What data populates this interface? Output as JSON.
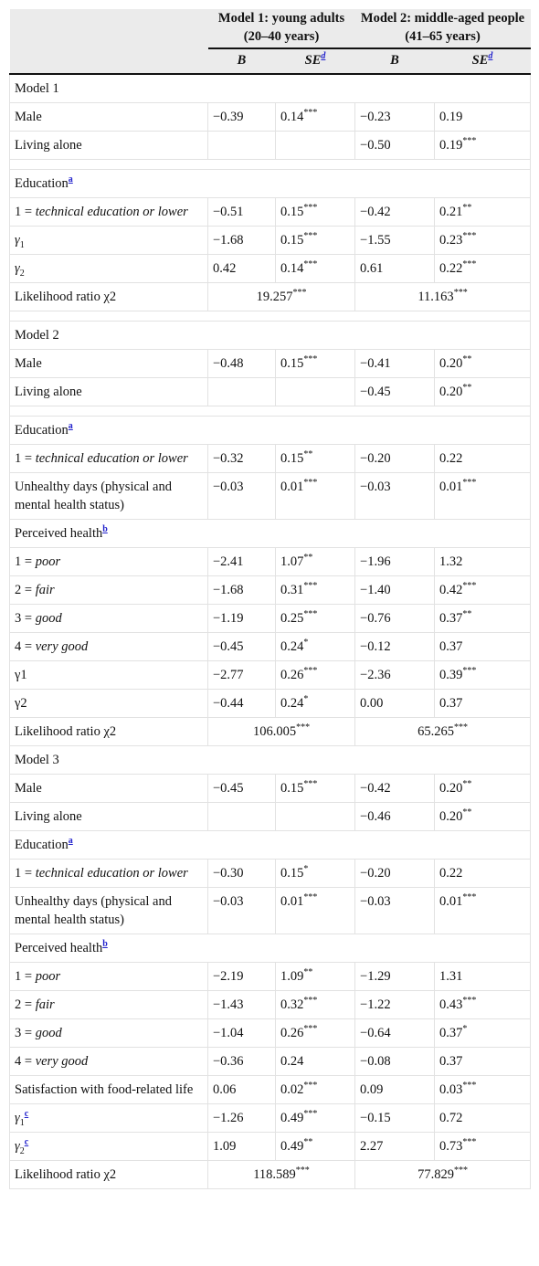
{
  "header": {
    "groups": [
      "Model 1: young adults (20–40 years)",
      "Model 2: middle-aged people (41–65 years)"
    ],
    "sub": [
      [
        {
          "t": "B",
          "f": "i"
        }
      ],
      [
        {
          "t": "SE",
          "f": "i"
        },
        {
          "t": "d",
          "f": "note"
        }
      ],
      [
        {
          "t": "B",
          "f": "i"
        }
      ],
      [
        {
          "t": "SE",
          "f": "i"
        },
        {
          "t": "d",
          "f": "note"
        }
      ]
    ]
  },
  "table": {
    "rows": [
      {
        "label": [
          {
            "t": "Model 1"
          }
        ],
        "section": true
      },
      {
        "label": [
          {
            "t": "Male"
          }
        ],
        "cells": [
          {
            "v": "−0.39"
          },
          {
            "v": "0.14",
            "sig": "***"
          },
          {
            "v": "−0.23"
          },
          {
            "v": "0.19"
          }
        ]
      },
      {
        "label": [
          {
            "t": "Living alone"
          }
        ],
        "cells": [
          null,
          null,
          {
            "v": "−0.50"
          },
          {
            "v": "0.19",
            "sig": "***"
          }
        ],
        "gap_after": true
      },
      {
        "label": [
          {
            "t": "Education"
          },
          {
            "t": "a",
            "f": "note"
          }
        ],
        "section": true
      },
      {
        "label": [
          {
            "t": "1 = "
          },
          {
            "t": "technical education or lower",
            "f": "i"
          }
        ],
        "cells": [
          {
            "v": "−0.51"
          },
          {
            "v": "0.15",
            "sig": "***"
          },
          {
            "v": "−0.42"
          },
          {
            "v": "0.21",
            "sig": "**"
          }
        ]
      },
      {
        "label": [
          {
            "t": "γ",
            "f": "i"
          },
          {
            "t": "1",
            "f": "sub"
          }
        ],
        "cells": [
          {
            "v": "−1.68"
          },
          {
            "v": "0.15",
            "sig": "***"
          },
          {
            "v": "−1.55"
          },
          {
            "v": "0.23",
            "sig": "***"
          }
        ]
      },
      {
        "label": [
          {
            "t": "γ",
            "f": "i"
          },
          {
            "t": "2",
            "f": "sub"
          }
        ],
        "cells": [
          {
            "v": "0.42"
          },
          {
            "v": "0.14",
            "sig": "***"
          },
          {
            "v": "0.61"
          },
          {
            "v": "0.22",
            "sig": "***"
          }
        ]
      },
      {
        "label": [
          {
            "t": "Likelihood ratio χ2"
          }
        ],
        "cells": [
          {
            "v": "19.257",
            "sig": "***",
            "span": 2
          },
          {
            "v": "11.163",
            "sig": "***",
            "span": 2
          }
        ],
        "gap_after": true
      },
      {
        "label": [
          {
            "t": "Model 2"
          }
        ],
        "section": true
      },
      {
        "label": [
          {
            "t": "Male"
          }
        ],
        "cells": [
          {
            "v": "−0.48"
          },
          {
            "v": "0.15",
            "sig": "***"
          },
          {
            "v": "−0.41"
          },
          {
            "v": "0.20",
            "sig": "**"
          }
        ]
      },
      {
        "label": [
          {
            "t": "Living alone"
          }
        ],
        "cells": [
          null,
          null,
          {
            "v": "−0.45"
          },
          {
            "v": "0.20",
            "sig": "**"
          }
        ],
        "gap_after": true
      },
      {
        "label": [
          {
            "t": "Education"
          },
          {
            "t": "a",
            "f": "note"
          }
        ],
        "section": true
      },
      {
        "label": [
          {
            "t": "1 = "
          },
          {
            "t": "technical education or lower",
            "f": "i"
          }
        ],
        "cells": [
          {
            "v": "−0.32"
          },
          {
            "v": "0.15",
            "sig": "**"
          },
          {
            "v": "−0.20"
          },
          {
            "v": "0.22"
          }
        ]
      },
      {
        "label": [
          {
            "t": "Unhealthy days (physical and mental health status)"
          }
        ],
        "cells": [
          {
            "v": "−0.03"
          },
          {
            "v": "0.01",
            "sig": "***"
          },
          {
            "v": "−0.03"
          },
          {
            "v": "0.01",
            "sig": "***"
          }
        ]
      },
      {
        "label": [
          {
            "t": "Perceived health"
          },
          {
            "t": "b",
            "f": "note"
          }
        ],
        "section": true
      },
      {
        "label": [
          {
            "t": "1 = "
          },
          {
            "t": "poor",
            "f": "i"
          }
        ],
        "cells": [
          {
            "v": "−2.41"
          },
          {
            "v": "1.07",
            "sig": "**"
          },
          {
            "v": "−1.96"
          },
          {
            "v": "1.32"
          }
        ]
      },
      {
        "label": [
          {
            "t": "2 = "
          },
          {
            "t": "fair",
            "f": "i"
          }
        ],
        "cells": [
          {
            "v": "−1.68"
          },
          {
            "v": "0.31",
            "sig": "***"
          },
          {
            "v": "−1.40"
          },
          {
            "v": "0.42",
            "sig": "***"
          }
        ]
      },
      {
        "label": [
          {
            "t": "3 = "
          },
          {
            "t": "good",
            "f": "i"
          }
        ],
        "cells": [
          {
            "v": "−1.19"
          },
          {
            "v": "0.25",
            "sig": "***"
          },
          {
            "v": "−0.76"
          },
          {
            "v": "0.37",
            "sig": "**"
          }
        ]
      },
      {
        "label": [
          {
            "t": "4 = "
          },
          {
            "t": "very good",
            "f": "i"
          }
        ],
        "cells": [
          {
            "v": "−0.45"
          },
          {
            "v": "0.24",
            "sig": "*"
          },
          {
            "v": "−0.12"
          },
          {
            "v": "0.37"
          }
        ]
      },
      {
        "label": [
          {
            "t": "γ1"
          }
        ],
        "cells": [
          {
            "v": "−2.77"
          },
          {
            "v": "0.26",
            "sig": "***"
          },
          {
            "v": "−2.36"
          },
          {
            "v": "0.39",
            "sig": "***"
          }
        ]
      },
      {
        "label": [
          {
            "t": "γ2"
          }
        ],
        "cells": [
          {
            "v": "−0.44"
          },
          {
            "v": "0.24",
            "sig": "*"
          },
          {
            "v": "0.00"
          },
          {
            "v": "0.37"
          }
        ]
      },
      {
        "label": [
          {
            "t": "Likelihood ratio χ2"
          }
        ],
        "cells": [
          {
            "v": "106.005",
            "sig": "***",
            "span": 2
          },
          {
            "v": "65.265",
            "sig": "***",
            "span": 2
          }
        ]
      },
      {
        "label": [
          {
            "t": "Model 3"
          }
        ],
        "section": true
      },
      {
        "label": [
          {
            "t": "Male"
          }
        ],
        "cells": [
          {
            "v": "−0.45"
          },
          {
            "v": "0.15",
            "sig": "***"
          },
          {
            "v": "−0.42"
          },
          {
            "v": "0.20",
            "sig": "**"
          }
        ]
      },
      {
        "label": [
          {
            "t": "Living alone"
          }
        ],
        "cells": [
          null,
          null,
          {
            "v": "−0.46"
          },
          {
            "v": "0.20",
            "sig": "**"
          }
        ]
      },
      {
        "label": [
          {
            "t": "Education"
          },
          {
            "t": "a",
            "f": "note"
          }
        ],
        "section": true
      },
      {
        "label": [
          {
            "t": "1 = "
          },
          {
            "t": "technical education or lower",
            "f": "i"
          }
        ],
        "cells": [
          {
            "v": "−0.30"
          },
          {
            "v": "0.15",
            "sig": "*"
          },
          {
            "v": "−0.20"
          },
          {
            "v": "0.22"
          }
        ]
      },
      {
        "label": [
          {
            "t": "Unhealthy days (physical and mental health status)"
          }
        ],
        "cells": [
          {
            "v": "−0.03"
          },
          {
            "v": "0.01",
            "sig": "***"
          },
          {
            "v": "−0.03"
          },
          {
            "v": "0.01",
            "sig": "***"
          }
        ]
      },
      {
        "label": [
          {
            "t": "Perceived health"
          },
          {
            "t": "b",
            "f": "note"
          }
        ],
        "section": true
      },
      {
        "label": [
          {
            "t": "1 = "
          },
          {
            "t": "poor",
            "f": "i"
          }
        ],
        "cells": [
          {
            "v": "−2.19"
          },
          {
            "v": "1.09",
            "sig": "**"
          },
          {
            "v": "−1.29"
          },
          {
            "v": "1.31"
          }
        ]
      },
      {
        "label": [
          {
            "t": "2 = "
          },
          {
            "t": "fair",
            "f": "i"
          }
        ],
        "cells": [
          {
            "v": "−1.43"
          },
          {
            "v": "0.32",
            "sig": "***"
          },
          {
            "v": "−1.22"
          },
          {
            "v": "0.43",
            "sig": "***"
          }
        ]
      },
      {
        "label": [
          {
            "t": "3 = "
          },
          {
            "t": "good",
            "f": "i"
          }
        ],
        "cells": [
          {
            "v": "−1.04"
          },
          {
            "v": "0.26",
            "sig": "***"
          },
          {
            "v": "−0.64"
          },
          {
            "v": "0.37",
            "sig": "*"
          }
        ]
      },
      {
        "label": [
          {
            "t": "4 = "
          },
          {
            "t": "very good",
            "f": "i"
          }
        ],
        "cells": [
          {
            "v": "−0.36"
          },
          {
            "v": "0.24"
          },
          {
            "v": "−0.08"
          },
          {
            "v": "0.37"
          }
        ]
      },
      {
        "label": [
          {
            "t": "Satisfaction with food-related life"
          }
        ],
        "cells": [
          {
            "v": "0.06"
          },
          {
            "v": "0.02",
            "sig": "***"
          },
          {
            "v": "0.09"
          },
          {
            "v": "0.03",
            "sig": "***"
          }
        ]
      },
      {
        "label": [
          {
            "t": "γ",
            "f": "i"
          },
          {
            "t": "1",
            "f": "sub"
          },
          {
            "t": "c",
            "f": "note"
          }
        ],
        "cells": [
          {
            "v": "−1.26"
          },
          {
            "v": "0.49",
            "sig": "***"
          },
          {
            "v": "−0.15"
          },
          {
            "v": "0.72"
          }
        ]
      },
      {
        "label": [
          {
            "t": "γ",
            "f": "i"
          },
          {
            "t": "2",
            "f": "sub"
          },
          {
            "t": "c",
            "f": "note"
          }
        ],
        "cells": [
          {
            "v": "1.09"
          },
          {
            "v": "0.49",
            "sig": "**"
          },
          {
            "v": "2.27"
          },
          {
            "v": "0.73",
            "sig": "***"
          }
        ]
      },
      {
        "label": [
          {
            "t": "Likelihood ratio χ2"
          }
        ],
        "cells": [
          {
            "v": "118.589",
            "sig": "***",
            "span": 2
          },
          {
            "v": "77.829",
            "sig": "***",
            "span": 2
          }
        ]
      }
    ]
  }
}
